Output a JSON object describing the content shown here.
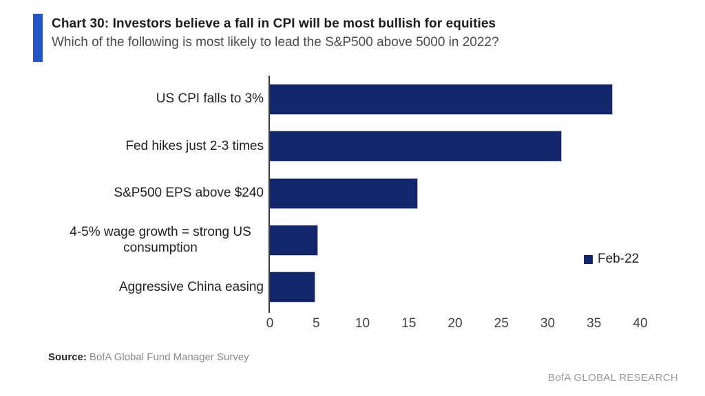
{
  "header": {
    "title": "Chart 30: Investors believe a fall in CPI will be most bullish for equities",
    "subtitle": "Which of the following is most likely to lead the S&P500 above 5000 in 2022?"
  },
  "chart_data": {
    "type": "bar",
    "orientation": "horizontal",
    "title": "Which of the following is most likely to lead the S&P500 above 5000 in 2022?",
    "categories": [
      "US CPI falls to 3%",
      "Fed hikes just 2-3 times",
      "S&P500 EPS above $240",
      "4-5% wage growth = strong US consumption",
      "Aggressive China easing"
    ],
    "series": [
      {
        "name": "Feb-22",
        "values": [
          37,
          31.5,
          16,
          5.2,
          4.9
        ]
      }
    ],
    "xlabel": "",
    "ylabel": "",
    "xlim": [
      0,
      40
    ],
    "x_ticks": [
      0,
      5,
      10,
      15,
      20,
      25,
      30,
      35,
      40
    ],
    "grid": false,
    "legend_position": "right-middle",
    "bar_color": "#14266b"
  },
  "legend": {
    "label": "Feb-22"
  },
  "footer": {
    "source_label": "Source:",
    "source_value": "BofA Global Fund Manager Survey",
    "branding": "BofA GLOBAL RESEARCH"
  },
  "colors": {
    "accent_bar": "#2457c5",
    "bar": "#14266b",
    "axis_line": "#3b3b3b"
  }
}
